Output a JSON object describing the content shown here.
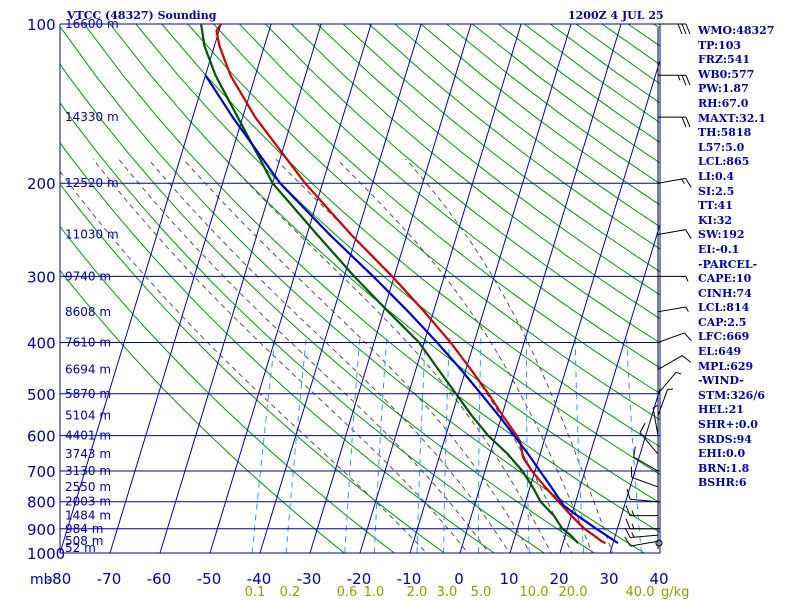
{
  "header": {
    "station": "VTCC (48327) Sounding",
    "time": "1200Z  4 JUL 25"
  },
  "colors": {
    "background": "#ffffff",
    "grid": "#0000aa",
    "dry_adiabat": "#009900",
    "moist_adiabat": "#555555",
    "mixing_ratio": "#3399ff",
    "temperature": "#cc0000",
    "dewpoint": "#005500",
    "parcel": "#0000cc",
    "wind": "#000000",
    "labels": "#0000aa",
    "mixing_labels": "#999900"
  },
  "stats": [
    "WMO:48327",
    "TP:103",
    "FRZ:541",
    "WB0:577",
    "PW:1.87",
    "RH:67.0",
    "MAXT:32.1",
    "TH:5818",
    "L57:5.0",
    "LCL:865",
    "LI:0.4",
    "SI:2.5",
    "TT:41",
    "KI:32",
    "SW:192",
    "EI:-0.1",
    "-PARCEL-",
    "CAPE:10",
    "CINH:74",
    "LCL:814",
    "CAP:2.5",
    "LFC:669",
    "EL:649",
    "MPL:629",
    "-WIND-",
    "STM:326/6",
    "HEL:21",
    "SHR+:0.0",
    "SRDS:94",
    "EHI:0.0",
    "BRN:1.8",
    "BSHR:6"
  ],
  "chart_data": {
    "type": "skew-t log-p",
    "title": "VTCC (48327) Sounding",
    "valid_time": "1200Z  4 JUL 25",
    "xlabel": "",
    "ylabel": "mb",
    "y_unit": "mb",
    "y_scale": "log",
    "pressure_range": [
      1000,
      100
    ],
    "temperature_range": [
      -80,
      40
    ],
    "pressure_ticks": [
      100,
      200,
      300,
      400,
      500,
      600,
      700,
      800,
      900,
      1000
    ],
    "temperature_ticks": [
      -80,
      -70,
      -60,
      -50,
      -40,
      -30,
      -20,
      -10,
      0,
      10,
      20,
      30,
      40
    ],
    "height_labels": [
      {
        "p": 100,
        "label": "16600 m"
      },
      {
        "p": 150,
        "label": "14330 m"
      },
      {
        "p": 200,
        "label": "12520 m"
      },
      {
        "p": 250,
        "label": "11030 m"
      },
      {
        "p": 300,
        "label": "9740 m"
      },
      {
        "p": 350,
        "label": "8608 m"
      },
      {
        "p": 400,
        "label": "7610 m"
      },
      {
        "p": 450,
        "label": "6694 m"
      },
      {
        "p": 500,
        "label": "5870 m"
      },
      {
        "p": 550,
        "label": "5104 m"
      },
      {
        "p": 600,
        "label": "4401 m"
      },
      {
        "p": 650,
        "label": "3743 m"
      },
      {
        "p": 700,
        "label": "3130 m"
      },
      {
        "p": 750,
        "label": "2550 m"
      },
      {
        "p": 800,
        "label": "2003 m"
      },
      {
        "p": 850,
        "label": "1484 m"
      },
      {
        "p": 900,
        "label": "984 m"
      },
      {
        "p": 950,
        "label": "508 m"
      },
      {
        "p": 1000,
        "label": "52 m"
      }
    ],
    "mixing_ratio_labels": [
      "0.1",
      "0.2",
      "0.6",
      "1.0",
      "2.0",
      "3.0",
      "5.0",
      "10.0",
      "20.0",
      "40.0"
    ],
    "mixing_ratio_unit": "g/kg",
    "series": [
      {
        "key": "temperature",
        "points": [
          {
            "p": 958,
            "t": 28.5
          },
          {
            "p": 950,
            "t": 27.6
          },
          {
            "p": 925,
            "t": 25.6
          },
          {
            "p": 900,
            "t": 23.4
          },
          {
            "p": 850,
            "t": 20.0
          },
          {
            "p": 800,
            "t": 16.6
          },
          {
            "p": 750,
            "t": 13.0
          },
          {
            "p": 700,
            "t": 9.4
          },
          {
            "p": 660,
            "t": 6.8
          },
          {
            "p": 615,
            "t": 5.2
          },
          {
            "p": 600,
            "t": 4.2
          },
          {
            "p": 550,
            "t": 0.2
          },
          {
            "p": 500,
            "t": -4.0
          },
          {
            "p": 450,
            "t": -9.0
          },
          {
            "p": 400,
            "t": -14.7
          },
          {
            "p": 350,
            "t": -21.8
          },
          {
            "p": 300,
            "t": -30.4
          },
          {
            "p": 250,
            "t": -41.2
          },
          {
            "p": 200,
            "t": -53.5
          },
          {
            "p": 175,
            "t": -60.0
          },
          {
            "p": 150,
            "t": -67.5
          },
          {
            "p": 125,
            "t": -75.0
          },
          {
            "p": 110,
            "t": -79.0
          },
          {
            "p": 103,
            "t": -80.5
          },
          {
            "p": 100,
            "t": -80.0
          }
        ]
      },
      {
        "key": "dewpoint",
        "points": [
          {
            "p": 958,
            "t": 23.0
          },
          {
            "p": 925,
            "t": 21.0
          },
          {
            "p": 900,
            "t": 19.0
          },
          {
            "p": 850,
            "t": 16.5
          },
          {
            "p": 800,
            "t": 13.0
          },
          {
            "p": 750,
            "t": 10.5
          },
          {
            "p": 700,
            "t": 7.5
          },
          {
            "p": 650,
            "t": 3.5
          },
          {
            "p": 600,
            "t": -1.5
          },
          {
            "p": 550,
            "t": -6.0
          },
          {
            "p": 500,
            "t": -10.5
          },
          {
            "p": 450,
            "t": -15.5
          },
          {
            "p": 400,
            "t": -21.0
          },
          {
            "p": 350,
            "t": -29.0
          },
          {
            "p": 300,
            "t": -38.0
          },
          {
            "p": 250,
            "t": -48.0
          },
          {
            "p": 200,
            "t": -60.0
          },
          {
            "p": 180,
            "t": -64.0
          },
          {
            "p": 150,
            "t": -71.0
          },
          {
            "p": 125,
            "t": -78.0
          },
          {
            "p": 110,
            "t": -82.0
          },
          {
            "p": 100,
            "t": -84.0
          }
        ]
      },
      {
        "key": "parcel",
        "points": [
          {
            "p": 958,
            "t": 31.0
          },
          {
            "p": 900,
            "t": 25.8
          },
          {
            "p": 850,
            "t": 21.2
          },
          {
            "p": 814,
            "t": 17.9
          },
          {
            "p": 750,
            "t": 14.2
          },
          {
            "p": 700,
            "t": 11.0
          },
          {
            "p": 650,
            "t": 7.6
          },
          {
            "p": 600,
            "t": 3.7
          },
          {
            "p": 550,
            "t": -0.6
          },
          {
            "p": 500,
            "t": -5.5
          },
          {
            "p": 450,
            "t": -11.0
          },
          {
            "p": 400,
            "t": -17.4
          },
          {
            "p": 350,
            "t": -25.0
          },
          {
            "p": 300,
            "t": -34.2
          },
          {
            "p": 250,
            "t": -45.5
          },
          {
            "p": 200,
            "t": -58.5
          },
          {
            "p": 150,
            "t": -72.0
          },
          {
            "p": 125,
            "t": -80.0
          }
        ]
      }
    ],
    "wind_barbs": [
      {
        "p": 950,
        "dir": 260,
        "spd": 10
      },
      {
        "p": 925,
        "dir": 265,
        "spd": 15
      },
      {
        "p": 900,
        "dir": 270,
        "spd": 15
      },
      {
        "p": 850,
        "dir": 270,
        "spd": 15
      },
      {
        "p": 800,
        "dir": 275,
        "spd": 10
      },
      {
        "p": 750,
        "dir": 290,
        "spd": 10
      },
      {
        "p": 700,
        "dir": 300,
        "spd": 10
      },
      {
        "p": 650,
        "dir": 320,
        "spd": 10
      },
      {
        "p": 600,
        "dir": 350,
        "spd": 5
      },
      {
        "p": 550,
        "dir": 20,
        "spd": 5
      },
      {
        "p": 500,
        "dir": 40,
        "spd": 5
      },
      {
        "p": 450,
        "dir": 60,
        "spd": 10
      },
      {
        "p": 400,
        "dir": 70,
        "spd": 10
      },
      {
        "p": 350,
        "dir": 80,
        "spd": 5
      },
      {
        "p": 300,
        "dir": 90,
        "spd": 5
      },
      {
        "p": 250,
        "dir": 80,
        "spd": 10
      },
      {
        "p": 200,
        "dir": 80,
        "spd": 15
      },
      {
        "p": 150,
        "dir": 90,
        "spd": 20
      },
      {
        "p": 125,
        "dir": 90,
        "spd": 25
      },
      {
        "p": 100,
        "dir": 90,
        "spd": 30
      }
    ]
  }
}
